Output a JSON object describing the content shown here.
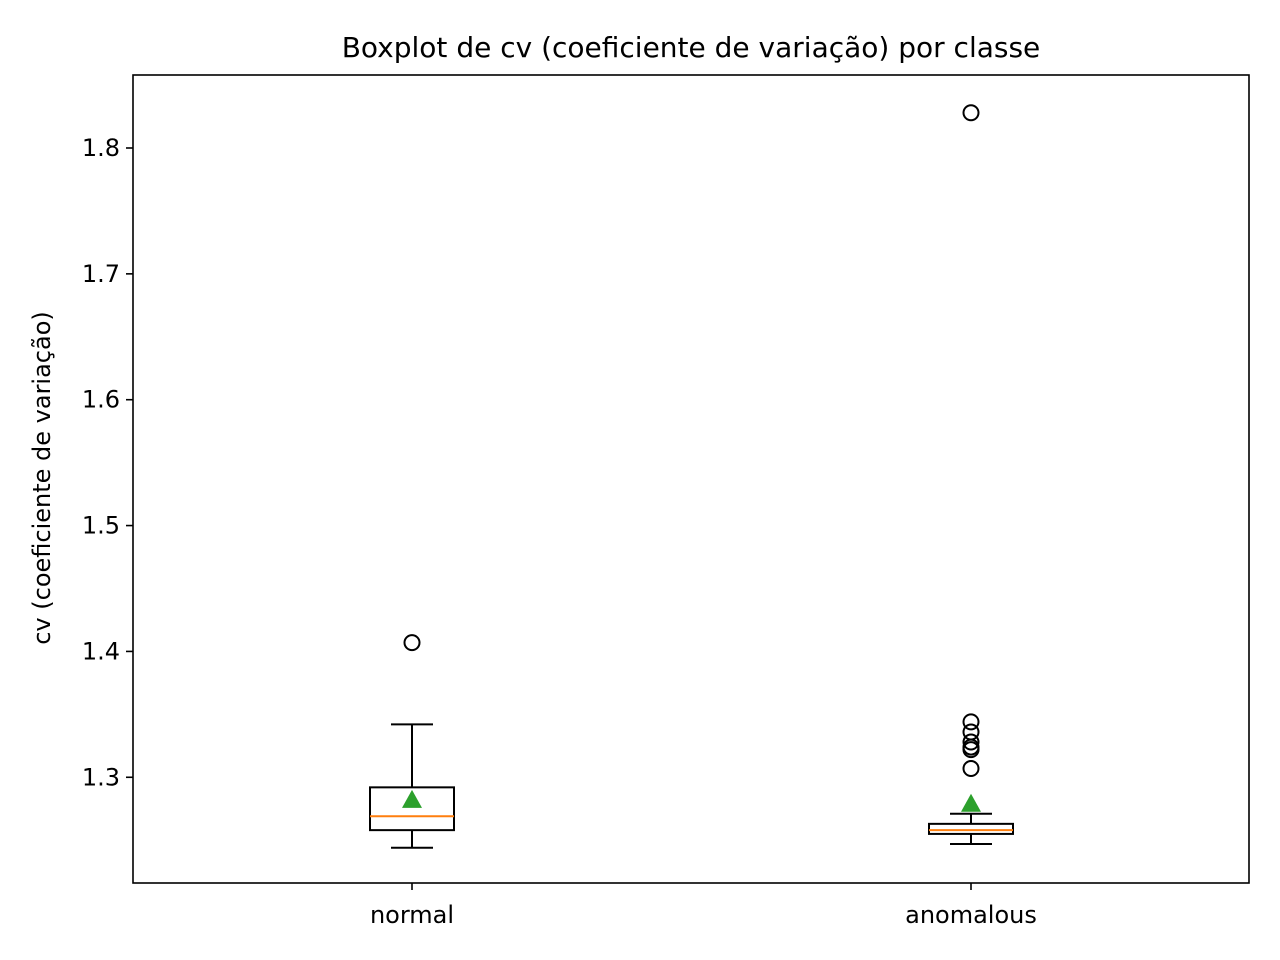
{
  "chart_data": {
    "type": "box",
    "title": "Boxplot de cv (coeficiente de variação) por classe",
    "xlabel": "",
    "ylabel": "cv (coeficiente de variação)",
    "ylim": [
      1.216,
      1.858
    ],
    "yticks": [
      1.3,
      1.4,
      1.5,
      1.6,
      1.7,
      1.8
    ],
    "ytick_labels": [
      "1.3",
      "1.4",
      "1.5",
      "1.6",
      "1.7",
      "1.8"
    ],
    "categories": [
      "normal",
      "anomalous"
    ],
    "boxes": [
      {
        "name": "normal",
        "whisker_low": 1.244,
        "q1": 1.258,
        "median": 1.269,
        "q3": 1.292,
        "whisker_high": 1.342,
        "mean": 1.282,
        "outliers": [
          1.407
        ]
      },
      {
        "name": "anomalous",
        "whisker_low": 1.247,
        "q1": 1.255,
        "median": 1.258,
        "q3": 1.263,
        "whisker_high": 1.271,
        "mean": 1.279,
        "outliers": [
          1.828,
          1.344,
          1.336,
          1.328,
          1.324,
          1.322,
          1.307
        ]
      }
    ],
    "grid": false,
    "colors": {
      "box": "#000000",
      "median": "#ff7f0e",
      "mean": "#2ca02c",
      "outlier": "#000000",
      "background": "#ffffff"
    }
  }
}
